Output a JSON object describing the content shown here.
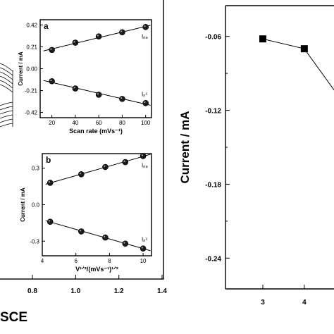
{
  "chart_data": [
    {
      "id": "left-main",
      "type": "line",
      "xlabel": "SCE",
      "xticks": [
        "0.8",
        "1.0",
        "1.2",
        "1.4"
      ],
      "xlim": [
        0.65,
        1.4
      ],
      "panel_a": {
        "label": "a",
        "ylabel": "Current / mA",
        "xlabel": "Scan rate (mVs⁻¹)",
        "xticks": [
          "20",
          "40",
          "60",
          "80",
          "100"
        ],
        "yticks": [
          "0.42",
          "0.21",
          "0.00",
          "-0.21",
          "-0.42"
        ],
        "xlim": [
          10,
          105
        ],
        "ylim": [
          -0.47,
          0.47
        ],
        "series": [
          {
            "name": "Iₚₐ",
            "x": [
              20,
              40,
              60,
              80,
              100
            ],
            "values": [
              0.18,
              0.25,
              0.31,
              0.35,
              0.4
            ]
          },
          {
            "name": "Iₚᶜ",
            "x": [
              20,
              40,
              60,
              80,
              100
            ],
            "values": [
              -0.12,
              -0.19,
              -0.25,
              -0.29,
              -0.33
            ]
          }
        ]
      },
      "panel_b": {
        "label": "b",
        "ylabel": "Current / mA",
        "xlabel": "V¹ᐟ²/(mVs⁻¹)¹ᐟ²",
        "xticks": [
          "4",
          "6",
          "8",
          "10"
        ],
        "yticks": [
          "0.3",
          "0.0",
          "-0.3"
        ],
        "xlim": [
          4,
          10.5
        ],
        "ylim": [
          -0.42,
          0.42
        ],
        "series": [
          {
            "name": "Iₚₐ",
            "x": [
              4.47,
              6.32,
              7.75,
              8.94,
              10.0
            ],
            "values": [
              0.18,
              0.25,
              0.31,
              0.35,
              0.4
            ]
          },
          {
            "name": "Iₚᶜ",
            "x": [
              4.47,
              6.32,
              7.75,
              8.94,
              10.0
            ],
            "values": [
              -0.14,
              -0.22,
              -0.27,
              -0.32,
              -0.36
            ]
          }
        ]
      }
    },
    {
      "id": "right",
      "type": "line",
      "ylabel": "Current / mA",
      "xticks": [
        "3",
        "4"
      ],
      "yticks": [
        "-0.06",
        "-0.12",
        "-0.18",
        "-0.24"
      ],
      "xlim": [
        2.1,
        4.75
      ],
      "ylim": [
        -0.265,
        -0.035
      ],
      "series": [
        {
          "name": "",
          "x": [
            3,
            4,
            4.75
          ],
          "values": [
            -0.062,
            -0.07,
            -0.105
          ]
        }
      ]
    }
  ]
}
